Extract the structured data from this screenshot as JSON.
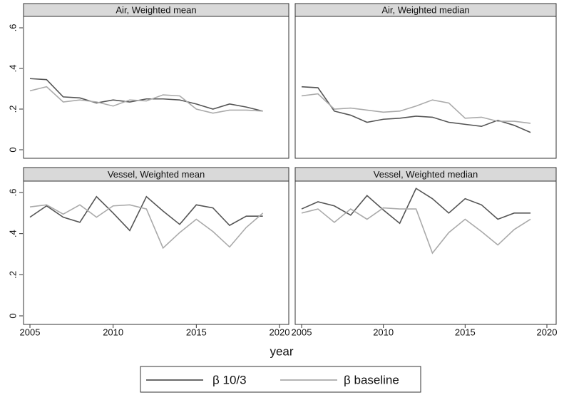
{
  "xlabel": "year",
  "chart_data": [
    {
      "type": "line",
      "title": "Air, Weighted mean",
      "x": [
        2005,
        2006,
        2007,
        2008,
        2009,
        2010,
        2011,
        2012,
        2013,
        2014,
        2015,
        2016,
        2017,
        2018,
        2019
      ],
      "xlim": [
        2005,
        2020
      ],
      "ylim": [
        0,
        0.6
      ],
      "yticks": [
        0,
        {
          "value": 0.2,
          "label": ".2"
        },
        {
          "value": 0.4,
          "label": ".4"
        },
        {
          "value": 0.6,
          "label": ".6"
        }
      ],
      "series": [
        {
          "name": "β 10/3",
          "color": "#555555",
          "values": [
            0.35,
            0.345,
            0.26,
            0.255,
            0.23,
            0.245,
            0.235,
            0.25,
            0.25,
            0.245,
            0.225,
            0.2,
            0.225,
            0.21,
            0.19
          ]
        },
        {
          "name": "β baseline",
          "color": "#aaaaaa",
          "values": [
            0.29,
            0.31,
            0.235,
            0.245,
            0.235,
            0.215,
            0.245,
            0.24,
            0.27,
            0.265,
            0.2,
            0.18,
            0.195,
            0.195,
            0.19
          ]
        }
      ]
    },
    {
      "type": "line",
      "title": "Air, Weighted median",
      "x": [
        2005,
        2006,
        2007,
        2008,
        2009,
        2010,
        2011,
        2012,
        2013,
        2014,
        2015,
        2016,
        2017,
        2018,
        2019
      ],
      "xlim": [
        2005,
        2020
      ],
      "ylim": [
        0,
        0.6
      ],
      "series": [
        {
          "name": "β 10/3",
          "color": "#555555",
          "values": [
            0.31,
            0.305,
            0.19,
            0.17,
            0.135,
            0.15,
            0.155,
            0.165,
            0.16,
            0.135,
            0.125,
            0.115,
            0.145,
            0.12,
            0.085
          ]
        },
        {
          "name": "β baseline",
          "color": "#aaaaaa",
          "values": [
            0.265,
            0.275,
            0.2,
            0.205,
            0.195,
            0.185,
            0.19,
            0.215,
            0.245,
            0.23,
            0.155,
            0.16,
            0.14,
            0.14,
            0.13
          ]
        }
      ]
    },
    {
      "type": "line",
      "title": "Vessel, Weighted mean",
      "x": [
        2005,
        2006,
        2007,
        2008,
        2009,
        2010,
        2011,
        2012,
        2013,
        2014,
        2015,
        2016,
        2017,
        2018,
        2019
      ],
      "xlim": [
        2005,
        2020
      ],
      "xticks": [
        2005,
        2010,
        2015,
        2020
      ],
      "ylim": [
        0,
        0.6
      ],
      "yticks": [
        0,
        {
          "value": 0.2,
          "label": ".2"
        },
        {
          "value": 0.4,
          "label": ".4"
        },
        {
          "value": 0.6,
          "label": ".6"
        }
      ],
      "series": [
        {
          "name": "β 10/3",
          "color": "#555555",
          "values": [
            0.48,
            0.535,
            0.48,
            0.455,
            0.58,
            0.5,
            0.415,
            0.58,
            0.51,
            0.445,
            0.54,
            0.525,
            0.44,
            0.485,
            0.485
          ]
        },
        {
          "name": "β baseline",
          "color": "#aaaaaa",
          "values": [
            0.53,
            0.54,
            0.495,
            0.54,
            0.48,
            0.535,
            0.54,
            0.52,
            0.33,
            0.405,
            0.47,
            0.41,
            0.335,
            0.43,
            0.5
          ]
        }
      ]
    },
    {
      "type": "line",
      "title": "Vessel, Weighted median",
      "x": [
        2005,
        2006,
        2007,
        2008,
        2009,
        2010,
        2011,
        2012,
        2013,
        2014,
        2015,
        2016,
        2017,
        2018,
        2019
      ],
      "xlim": [
        2005,
        2020
      ],
      "xticks": [
        2005,
        2010,
        2015,
        2020
      ],
      "ylim": [
        0,
        0.6
      ],
      "series": [
        {
          "name": "β 10/3",
          "color": "#555555",
          "values": [
            0.52,
            0.555,
            0.535,
            0.49,
            0.585,
            0.515,
            0.45,
            0.62,
            0.57,
            0.5,
            0.57,
            0.54,
            0.47,
            0.5,
            0.5
          ]
        },
        {
          "name": "β baseline",
          "color": "#aaaaaa",
          "values": [
            0.5,
            0.52,
            0.455,
            0.52,
            0.47,
            0.525,
            0.52,
            0.52,
            0.305,
            0.405,
            0.47,
            0.41,
            0.345,
            0.42,
            0.47
          ]
        }
      ]
    }
  ]
}
